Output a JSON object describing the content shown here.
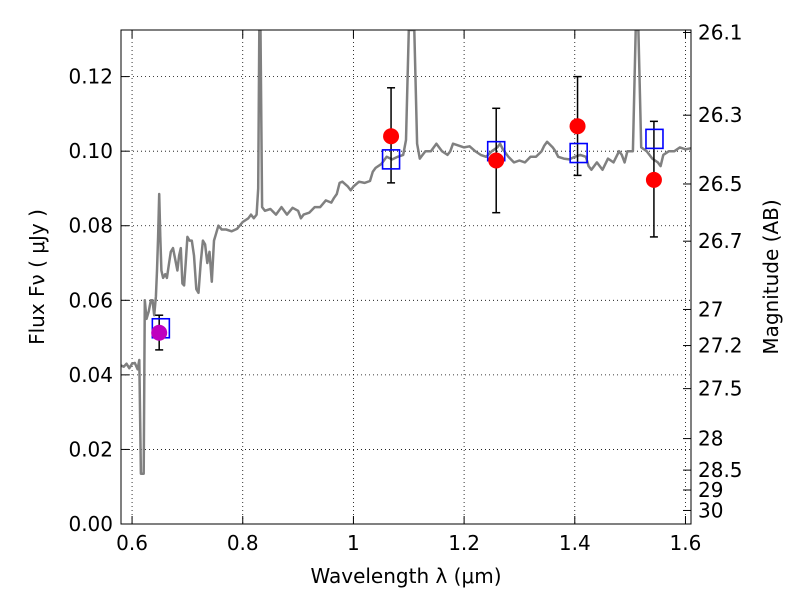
{
  "chart_data": {
    "type": "scatter",
    "title": "",
    "xlabel": "Wavelength  λ (μm)",
    "ylabel": "Flux  Fν  ( μJy )",
    "y2label": "Magnitude (AB)",
    "xlim": [
      0.58,
      1.61
    ],
    "ylim": [
      0.0,
      0.1325
    ],
    "grid": true,
    "x_ticks": [
      0.6,
      0.8,
      1.0,
      1.2,
      1.4,
      1.6
    ],
    "x_tick_labels": [
      "0.6",
      "0.8",
      "1",
      "1.2",
      "1.4",
      "1.6"
    ],
    "y_ticks": [
      0.0,
      0.02,
      0.04,
      0.06,
      0.08,
      0.1,
      0.12
    ],
    "y_tick_labels": [
      "0.00",
      "0.02",
      "0.04",
      "0.06",
      "0.08",
      "0.10",
      "0.12"
    ],
    "magnitude_ticks": [
      {
        "mag": 26.1,
        "label": "26.1"
      },
      {
        "mag": 26.3,
        "label": "26.3"
      },
      {
        "mag": 26.5,
        "label": "26.5"
      },
      {
        "mag": 26.7,
        "label": "26.7"
      },
      {
        "mag": 27.0,
        "label": "27"
      },
      {
        "mag": 27.2,
        "label": "27.2"
      },
      {
        "mag": 27.5,
        "label": "27.5"
      },
      {
        "mag": 28.0,
        "label": "28"
      },
      {
        "mag": 28.5,
        "label": "28.5"
      },
      {
        "mag": 29.0,
        "label": "29"
      },
      {
        "mag": 30.0,
        "label": "30"
      }
    ],
    "magnitude_zeropoint": 23.9,
    "colors": {
      "model_line": "#808080",
      "observed": "#ff0000",
      "observed_first": "#bf00bf",
      "model_band": "#0000ff",
      "errorbar": "#000000"
    },
    "series": [
      {
        "name": "Model spectrum",
        "kind": "line",
        "points": [
          [
            0.58,
            0.0425
          ],
          [
            0.585,
            0.0422
          ],
          [
            0.59,
            0.043
          ],
          [
            0.595,
            0.0418
          ],
          [
            0.6,
            0.043
          ],
          [
            0.605,
            0.0432
          ],
          [
            0.61,
            0.0415
          ],
          [
            0.613,
            0.044
          ],
          [
            0.616,
            0.0135
          ],
          [
            0.618,
            0.0135
          ],
          [
            0.621,
            0.0135
          ],
          [
            0.623,
            0.06
          ],
          [
            0.626,
            0.055
          ],
          [
            0.63,
            0.057
          ],
          [
            0.634,
            0.06
          ],
          [
            0.637,
            0.06
          ],
          [
            0.64,
            0.056
          ],
          [
            0.643,
            0.061
          ],
          [
            0.645,
            0.068
          ],
          [
            0.647,
            0.077
          ],
          [
            0.649,
            0.0885
          ],
          [
            0.651,
            0.077
          ],
          [
            0.653,
            0.068
          ],
          [
            0.656,
            0.066
          ],
          [
            0.66,
            0.067
          ],
          [
            0.663,
            0.066
          ],
          [
            0.667,
            0.07
          ],
          [
            0.67,
            0.073
          ],
          [
            0.674,
            0.074
          ],
          [
            0.678,
            0.071
          ],
          [
            0.682,
            0.068
          ],
          [
            0.685,
            0.072
          ],
          [
            0.688,
            0.074
          ],
          [
            0.691,
            0.0645
          ],
          [
            0.694,
            0.064
          ],
          [
            0.697,
            0.07
          ],
          [
            0.7,
            0.077
          ],
          [
            0.704,
            0.076
          ],
          [
            0.708,
            0.076
          ],
          [
            0.712,
            0.072
          ],
          [
            0.716,
            0.063
          ],
          [
            0.72,
            0.062
          ],
          [
            0.724,
            0.07
          ],
          [
            0.728,
            0.076
          ],
          [
            0.732,
            0.075
          ],
          [
            0.736,
            0.07
          ],
          [
            0.74,
            0.073
          ],
          [
            0.744,
            0.065
          ],
          [
            0.748,
            0.076
          ],
          [
            0.752,
            0.078
          ],
          [
            0.756,
            0.08
          ],
          [
            0.762,
            0.079
          ],
          [
            0.77,
            0.079
          ],
          [
            0.78,
            0.0785
          ],
          [
            0.79,
            0.0792
          ],
          [
            0.8,
            0.081
          ],
          [
            0.81,
            0.082
          ],
          [
            0.815,
            0.083
          ],
          [
            0.82,
            0.082
          ],
          [
            0.825,
            0.083
          ],
          [
            0.828,
            0.09
          ],
          [
            0.83,
            0.1325
          ],
          [
            0.832,
            0.1325
          ],
          [
            0.835,
            0.085
          ],
          [
            0.84,
            0.084
          ],
          [
            0.85,
            0.0845
          ],
          [
            0.86,
            0.083
          ],
          [
            0.87,
            0.085
          ],
          [
            0.88,
            0.083
          ],
          [
            0.89,
            0.0848
          ],
          [
            0.9,
            0.084
          ],
          [
            0.905,
            0.082
          ],
          [
            0.91,
            0.083
          ],
          [
            0.92,
            0.0835
          ],
          [
            0.93,
            0.085
          ],
          [
            0.94,
            0.085
          ],
          [
            0.95,
            0.0868
          ],
          [
            0.96,
            0.0862
          ],
          [
            0.965,
            0.0875
          ],
          [
            0.97,
            0.0885
          ],
          [
            0.975,
            0.0915
          ],
          [
            0.98,
            0.0918
          ],
          [
            0.99,
            0.0905
          ],
          [
            0.995,
            0.0895
          ],
          [
            1.0,
            0.0905
          ],
          [
            1.01,
            0.0918
          ],
          [
            1.02,
            0.0915
          ],
          [
            1.03,
            0.092
          ],
          [
            1.035,
            0.0945
          ],
          [
            1.04,
            0.0955
          ],
          [
            1.05,
            0.0965
          ],
          [
            1.055,
            0.0975
          ],
          [
            1.06,
            0.0985
          ],
          [
            1.07,
            0.0978
          ],
          [
            1.08,
            0.0985
          ],
          [
            1.09,
            0.099
          ],
          [
            1.095,
            0.103
          ],
          [
            1.1,
            0.1325
          ],
          [
            1.105,
            0.1325
          ],
          [
            1.11,
            0.1325
          ],
          [
            1.115,
            0.102
          ],
          [
            1.12,
            0.098
          ],
          [
            1.125,
            0.099
          ],
          [
            1.13,
            0.1
          ],
          [
            1.14,
            0.1
          ],
          [
            1.15,
            0.102
          ],
          [
            1.16,
            0.1
          ],
          [
            1.17,
            0.099
          ],
          [
            1.175,
            0.1
          ],
          [
            1.18,
            0.102
          ],
          [
            1.19,
            0.1015
          ],
          [
            1.2,
            0.101
          ],
          [
            1.21,
            0.1013
          ],
          [
            1.22,
            0.1
          ],
          [
            1.225,
            0.0995
          ],
          [
            1.23,
            0.099
          ],
          [
            1.24,
            0.0985
          ],
          [
            1.25,
            0.1
          ],
          [
            1.26,
            0.101
          ],
          [
            1.265,
            0.102
          ],
          [
            1.27,
            0.1005
          ],
          [
            1.28,
            0.0985
          ],
          [
            1.29,
            0.097
          ],
          [
            1.3,
            0.0975
          ],
          [
            1.31,
            0.097
          ],
          [
            1.32,
            0.0985
          ],
          [
            1.33,
            0.0985
          ],
          [
            1.34,
            0.1
          ],
          [
            1.345,
            0.1015
          ],
          [
            1.35,
            0.1025
          ],
          [
            1.36,
            0.101
          ],
          [
            1.365,
            0.1
          ],
          [
            1.37,
            0.0985
          ],
          [
            1.38,
            0.098
          ],
          [
            1.39,
            0.0978
          ],
          [
            1.4,
            0.0985
          ],
          [
            1.41,
            0.099
          ],
          [
            1.42,
            0.0985
          ],
          [
            1.425,
            0.096
          ],
          [
            1.43,
            0.095
          ],
          [
            1.44,
            0.097
          ],
          [
            1.45,
            0.095
          ],
          [
            1.46,
            0.098
          ],
          [
            1.47,
            0.097
          ],
          [
            1.48,
            0.1
          ],
          [
            1.485,
            0.099
          ],
          [
            1.49,
            0.097
          ],
          [
            1.495,
            0.1
          ],
          [
            1.5,
            0.1
          ],
          [
            1.505,
            0.1
          ],
          [
            1.51,
            0.1325
          ],
          [
            1.515,
            0.1325
          ],
          [
            1.52,
            0.101
          ],
          [
            1.53,
            0.1
          ],
          [
            1.54,
            0.098
          ],
          [
            1.55,
            0.097
          ],
          [
            1.555,
            0.096
          ],
          [
            1.56,
            0.099
          ],
          [
            1.57,
            0.1
          ],
          [
            1.58,
            0.1
          ],
          [
            1.59,
            0.101
          ],
          [
            1.6,
            0.1005
          ],
          [
            1.61,
            0.1008
          ]
        ]
      },
      {
        "name": "Observed photometry",
        "kind": "points",
        "points": [
          {
            "x": 0.649,
            "y": 0.0513,
            "err_low": 0.0467,
            "err_high": 0.056
          },
          {
            "x": 1.068,
            "y": 0.104,
            "err_low": 0.0915,
            "err_high": 0.117
          },
          {
            "x": 1.258,
            "y": 0.0975,
            "err_low": 0.0835,
            "err_high": 0.1115
          },
          {
            "x": 1.405,
            "y": 0.1067,
            "err_low": 0.0935,
            "err_high": 0.12
          },
          {
            "x": 1.543,
            "y": 0.0923,
            "err_low": 0.077,
            "err_high": 0.108
          }
        ]
      },
      {
        "name": "Model band flux",
        "kind": "points",
        "points": [
          {
            "x": 0.652,
            "y": 0.0525
          },
          {
            "x": 1.068,
            "y": 0.0978
          },
          {
            "x": 1.258,
            "y": 0.1
          },
          {
            "x": 1.407,
            "y": 0.0995
          },
          {
            "x": 1.544,
            "y": 0.1033
          }
        ]
      }
    ]
  }
}
